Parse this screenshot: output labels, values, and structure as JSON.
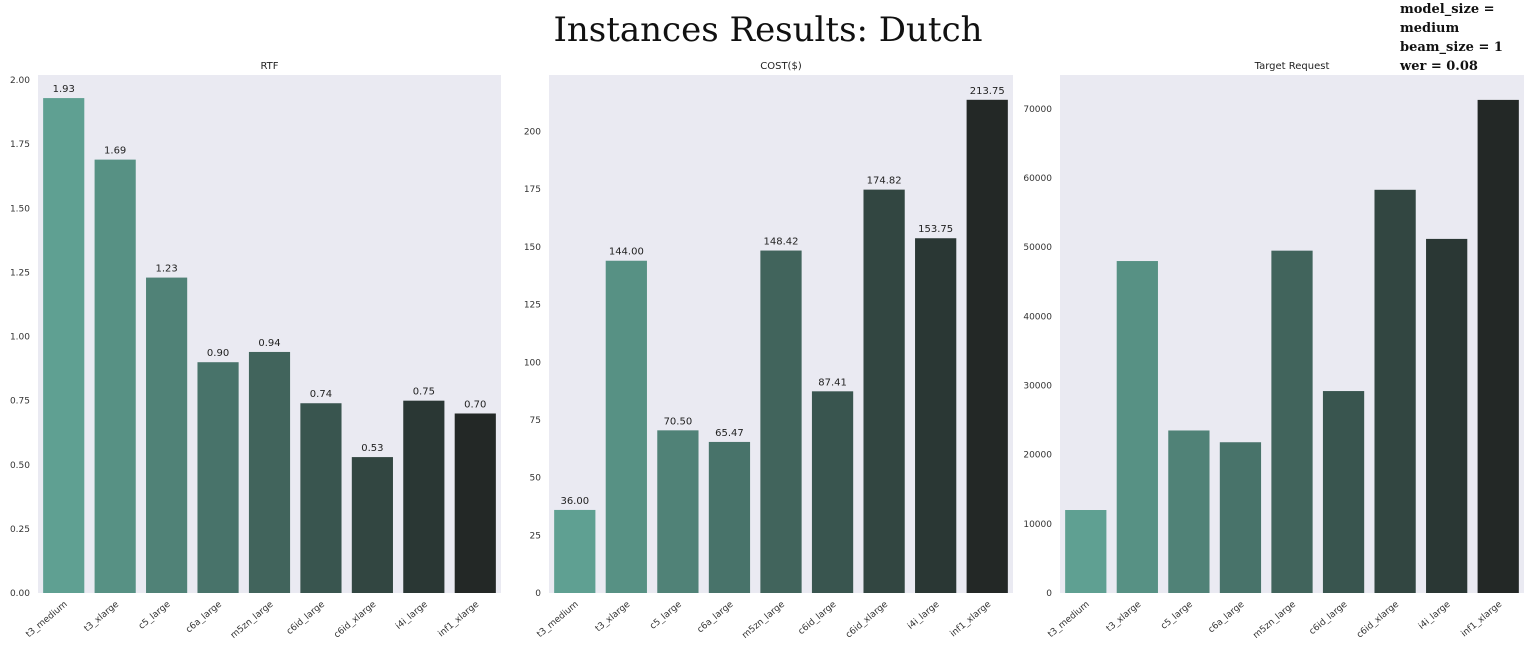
{
  "title": "Instances Results: Dutch",
  "params": [
    "model_size = medium",
    "beam_size = 1",
    "wer = 0.08"
  ],
  "colors": {
    "plot_background": "#eaeaf2",
    "bars": [
      "#5fa092",
      "#579184",
      "#508277",
      "#48736a",
      "#41645c",
      "#39554f",
      "#324641",
      "#2a3734",
      "#232826"
    ]
  },
  "chart_data": [
    {
      "type": "bar",
      "title": "RTF",
      "categories": [
        "t3_medium",
        "t3_xlarge",
        "c5_large",
        "c6a_large",
        "m5zn_large",
        "c6id_large",
        "c6id_xlarge",
        "i4i_large",
        "inf1_xlarge"
      ],
      "values": [
        1.93,
        1.69,
        1.23,
        0.9,
        0.94,
        0.74,
        0.53,
        0.75,
        0.7
      ],
      "data_labels": [
        "1.93",
        "1.69",
        "1.23",
        "0.90",
        "0.94",
        "0.74",
        "0.53",
        "0.75",
        "0.70"
      ],
      "yticks": [
        "0.00",
        "0.25",
        "0.50",
        "0.75",
        "1.00",
        "1.25",
        "1.50",
        "1.75",
        "2.00"
      ],
      "ylim": [
        0,
        2.02
      ],
      "grid": false
    },
    {
      "type": "bar",
      "title": "COST($)",
      "categories": [
        "t3_medium",
        "t3_xlarge",
        "c5_large",
        "c6a_large",
        "m5zn_large",
        "c6id_large",
        "c6id_xlarge",
        "i4i_large",
        "inf1_xlarge"
      ],
      "values": [
        36.0,
        144.0,
        70.5,
        65.47,
        148.42,
        87.41,
        174.82,
        153.75,
        213.75
      ],
      "data_labels": [
        "36.00",
        "144.00",
        "70.50",
        "65.47",
        "148.42",
        "87.41",
        "174.82",
        "153.75",
        "213.75"
      ],
      "yticks": [
        "0",
        "25",
        "50",
        "75",
        "100",
        "125",
        "150",
        "175",
        "200"
      ],
      "ylim": [
        0,
        224.5
      ],
      "grid": false
    },
    {
      "type": "bar",
      "title": "Target Request",
      "categories": [
        "t3_medium",
        "t3_xlarge",
        "c5_large",
        "c6a_large",
        "m5zn_large",
        "c6id_large",
        "c6id_xlarge",
        "i4i_large",
        "inf1_xlarge"
      ],
      "values": [
        12000,
        48000,
        23500,
        21800,
        49500,
        29200,
        58300,
        51200,
        71300
      ],
      "data_labels": [],
      "yticks": [
        "0",
        "10000",
        "20000",
        "30000",
        "40000",
        "50000",
        "60000",
        "70000"
      ],
      "ylim": [
        0,
        74900
      ],
      "grid": false
    }
  ]
}
